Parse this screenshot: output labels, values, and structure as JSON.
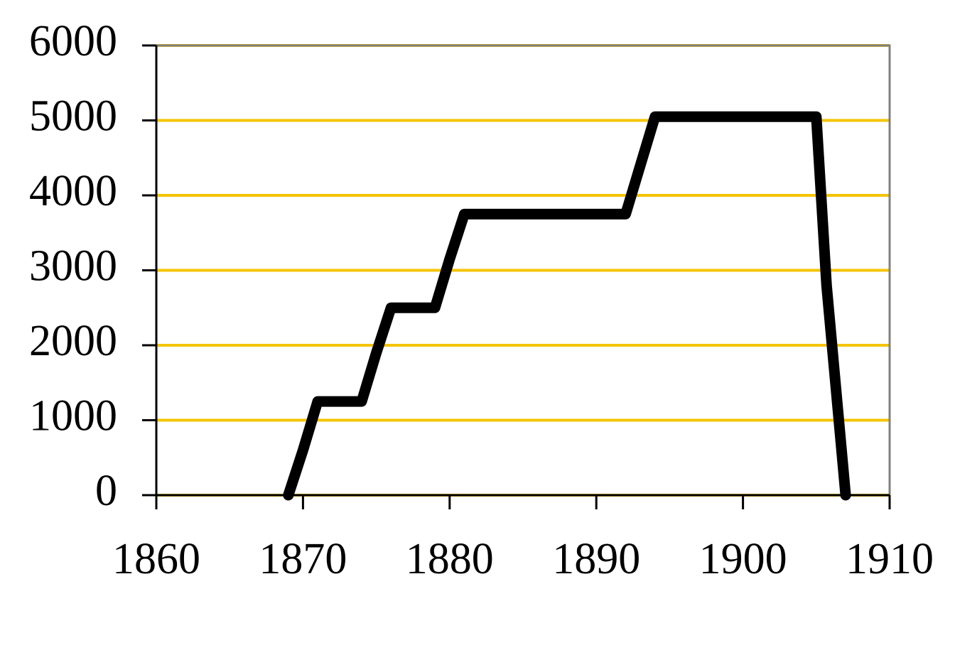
{
  "chart_data": {
    "type": "line",
    "x": [
      1869,
      1870,
      1871,
      1874,
      1875,
      1876,
      1879,
      1880,
      1881,
      1892,
      1893,
      1894,
      1905,
      1905.7,
      1907
    ],
    "series": [
      {
        "color": "#000000",
        "values": [
          0,
          600,
          1250,
          1250,
          1900,
          2500,
          2500,
          3150,
          3750,
          3750,
          4400,
          5050,
          5050,
          2800,
          0
        ]
      }
    ],
    "xlim": [
      1860,
      1910
    ],
    "xticks": [
      1860,
      1870,
      1880,
      1890,
      1900,
      1910
    ],
    "ylim": [
      0,
      6000
    ],
    "yticks": [
      0,
      1000,
      2000,
      3000,
      4000,
      5000,
      6000
    ],
    "grid": true,
    "grid_color": "#f5c400"
  }
}
